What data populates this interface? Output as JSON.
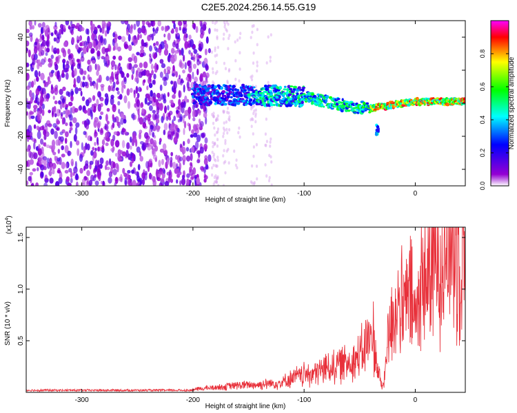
{
  "title": "C2E5.2024.256.14.55.G19",
  "chart_data": [
    {
      "type": "heatmap",
      "xlabel": "Height of straight line (km)",
      "ylabel": "Frequency (Hz)",
      "xlim": [
        -350,
        45
      ],
      "ylim": [
        -50,
        50
      ],
      "xticks": [
        -300,
        -200,
        -100,
        0
      ],
      "yticks": [
        -40,
        -20,
        0,
        20,
        40
      ],
      "colorbar": {
        "label": "Normalized spectral amplitude",
        "range": [
          0,
          1
        ],
        "ticks": [
          "0.0",
          "0.2",
          "0.4",
          "0.6",
          "0.8"
        ],
        "colormap": [
          "#ffffff",
          "#9400d3",
          "#0000ff",
          "#00ffff",
          "#00ff00",
          "#ffff00",
          "#ff0000",
          "#ff00ff"
        ]
      },
      "features": {
        "noise_region_x": [
          -350,
          -185
        ],
        "signal_trace": [
          {
            "x": -200,
            "freq": 5
          },
          {
            "x": -150,
            "freq": 5
          },
          {
            "x": -100,
            "freq": 4
          },
          {
            "x": -60,
            "freq": -2
          },
          {
            "x": -40,
            "freq": -3
          },
          {
            "x": -20,
            "freq": -1
          },
          {
            "x": 0,
            "freq": 1
          },
          {
            "x": 45,
            "freq": 1
          }
        ],
        "outlier_blob": {
          "x": -34,
          "freq": -16
        }
      }
    },
    {
      "type": "line",
      "xlabel": "Height of straight line (km)",
      "ylabel": "SNR (10 * v/v)",
      "scale_label": "(x10",
      "scale_exp": "4",
      "xlim": [
        -350,
        45
      ],
      "ylim": [
        0,
        1.6
      ],
      "xticks": [
        -300,
        -200,
        -100,
        0
      ],
      "yticks": [
        "0.5",
        "1.0",
        "1.5"
      ],
      "color": "#e8303a",
      "series": [
        {
          "x": [
            -350,
            -300,
            -250,
            -200,
            -180,
            -160,
            -140,
            -120,
            -110,
            -100,
            -90,
            -80,
            -70,
            -60,
            -50,
            -45,
            -40,
            -38,
            -35,
            -30,
            -28,
            -25,
            -20,
            -15,
            -10,
            -5,
            0,
            5,
            10,
            15,
            20,
            25,
            30,
            35,
            40,
            45
          ],
          "values": [
            0.02,
            0.02,
            0.02,
            0.03,
            0.05,
            0.07,
            0.08,
            0.1,
            0.15,
            0.18,
            0.2,
            0.25,
            0.28,
            0.32,
            0.35,
            0.5,
            0.55,
            0.6,
            0.3,
            0.05,
            0.1,
            0.55,
            0.8,
            0.9,
            0.85,
            1.0,
            0.75,
            1.05,
            1.2,
            1.3,
            1.35,
            1.45,
            1.5,
            1.52,
            1.55,
            1.56
          ]
        }
      ]
    }
  ]
}
